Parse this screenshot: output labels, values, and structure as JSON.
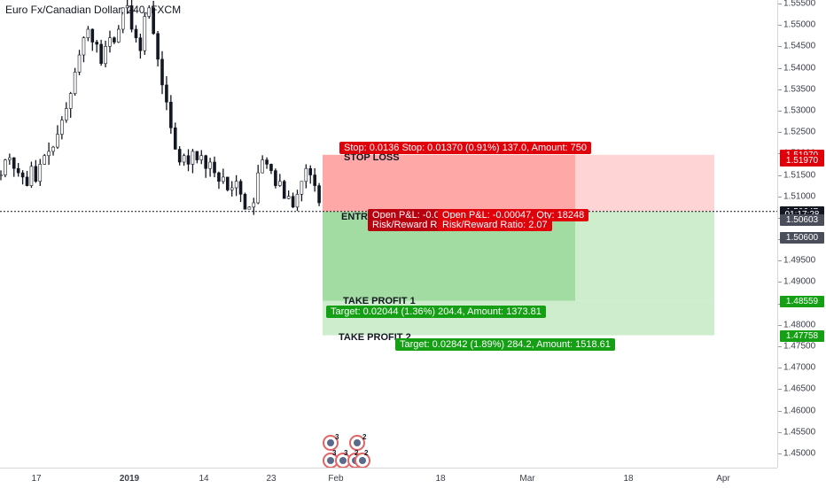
{
  "symbol_title": "Euro Fx/Canadian Dollar, 240, FXCM",
  "colors": {
    "stop_zone": "#ffa8a8",
    "stop_zone_light": "#ffd4d4",
    "profit_zone": "#a3dca3",
    "profit_zone_light": "#cdedcd",
    "red": "#e0000a",
    "green": "#149f14"
  },
  "price_axis": {
    "ticks": [
      "1.55500",
      "1.55000",
      "1.54500",
      "1.54000",
      "1.53500",
      "1.53000",
      "1.52500",
      "1.52000",
      "1.51500",
      "1.51000",
      "1.50500",
      "1.50000",
      "1.49500",
      "1.49000",
      "1.48500",
      "1.48000",
      "1.47500",
      "1.47000",
      "1.46500",
      "1.46000",
      "1.45500",
      "1.45000"
    ],
    "tags": [
      {
        "text": "1.51970",
        "color": "red",
        "price": 1.5197
      },
      {
        "text": "1.51970",
        "color": "red",
        "price": 1.5184
      },
      {
        "text": "1.50647",
        "color": "black",
        "price": 1.50647
      },
      {
        "text": "01:17:28",
        "color": "black",
        "price": 1.5058
      },
      {
        "text": "1.50603",
        "color": "gray",
        "price": 1.5045
      },
      {
        "text": "1.50600",
        "color": "gray",
        "price": 1.5005
      },
      {
        "text": "1.48559",
        "color": "green",
        "price": 1.48559
      },
      {
        "text": "1.47758",
        "color": "green",
        "price": 1.47758
      }
    ]
  },
  "time_axis": {
    "ticks": [
      {
        "label": "17",
        "bold": false
      },
      {
        "label": "2019",
        "bold": true
      },
      {
        "label": "14",
        "bold": false
      },
      {
        "label": "23",
        "bold": false
      },
      {
        "label": "Feb",
        "bold": false
      },
      {
        "label": "18",
        "bold": false
      },
      {
        "label": "Mar",
        "bold": false
      },
      {
        "label": "18",
        "bold": false
      },
      {
        "label": "Apr",
        "bold": false
      }
    ]
  },
  "position": {
    "stop_label": "STOP LOSS",
    "entry_label": "ENTRY",
    "tp1_label": "TAKE PROFIT 1",
    "tp2_label": "TAKE PROFIT 2",
    "stop_box": "Stop: 0.0136  Stop: 0.01370 (0.91%) 137.0, Amount: 750",
    "pnl_box_a": "Open P&L: -0.00047",
    "rr_box_a": "Risk/Reward Ratio: 2.07",
    "pnl_box_b": "Open P&L: -0.00047, Qty: 18248",
    "rr_box_b": "Risk/Reward Ratio: 2.07",
    "tp1_box": "Target: 0.02044 (1.36%) 204.4, Amount: 1373.81",
    "tp2_box": "Target: 0.02842 (1.89%) 284.2, Amount: 1518.61"
  },
  "events": {
    "row1": [
      "3",
      "2"
    ],
    "row2": [
      "3",
      "3",
      "2",
      "2"
    ]
  },
  "chart_data": {
    "type": "line",
    "series": [
      {
        "values": [
          1.515,
          1.5185,
          1.519,
          1.5165,
          1.5155,
          1.5145,
          1.5125,
          1.517,
          1.5135,
          1.5175,
          1.5195,
          1.5205,
          1.5215,
          1.5245,
          1.5278,
          1.5305,
          1.534,
          1.539,
          1.543,
          1.547,
          1.549,
          1.546,
          1.5455,
          1.541,
          1.545,
          1.547,
          1.546,
          1.549,
          1.554,
          1.5545,
          1.549,
          1.547,
          1.544,
          1.552,
          1.554,
          1.548,
          1.542,
          1.536,
          1.532,
          1.526,
          1.521,
          1.518,
          1.5195,
          1.5175,
          1.5205,
          1.5185,
          1.5195,
          1.5165,
          1.518,
          1.5155,
          1.5135,
          1.5145,
          1.5115,
          1.512,
          1.5135,
          1.5105,
          1.507,
          1.5075,
          1.5085,
          1.5155,
          1.5185,
          1.5175,
          1.516,
          1.5125,
          1.5135,
          1.5095,
          1.51,
          1.5075,
          1.5105,
          1.5135,
          1.5165,
          1.515,
          1.5125,
          1.5085
        ]
      }
    ],
    "ylim": [
      1.4463,
      1.5582
    ],
    "grid": false
  }
}
